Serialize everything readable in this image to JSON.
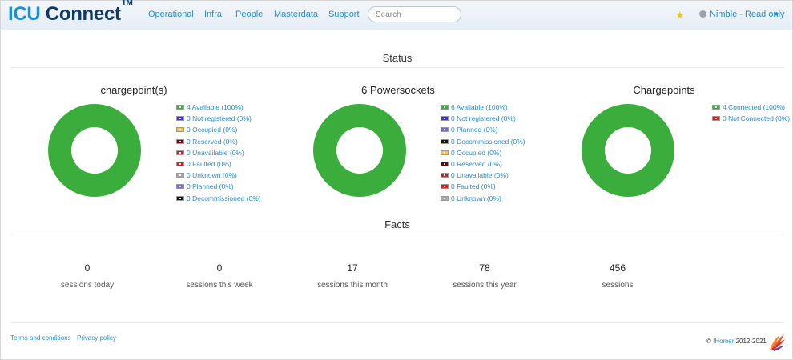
{
  "navbar": {
    "brand_part1": "ICU",
    "brand_part2": " Connect",
    "brand_tm": "TM",
    "links": [
      "Operational",
      "Infra",
      "People",
      "Masterdata",
      "Support"
    ],
    "search_placeholder": "Search",
    "user_menu": "Nimble - Read only"
  },
  "status": {
    "title": "Status",
    "charts": [
      {
        "title": "chargepoint(s)",
        "legend": [
          {
            "label": "4 Available (100%)",
            "color": "#3aad3d"
          },
          {
            "label": "0 Not registered (0%)",
            "color": "#3d30d9"
          },
          {
            "label": "0 Occupied (0%)",
            "color": "#f4c542"
          },
          {
            "label": "0 Reserved (0%)",
            "color": "#6e0010"
          },
          {
            "label": "0 Unavailable (0%)",
            "color": "#a83232"
          },
          {
            "label": "0 Faulted (0%)",
            "color": "#e01b1b"
          },
          {
            "label": "0 Unknown (0%)",
            "color": "#a6a6a6"
          },
          {
            "label": "0 Planned (0%)",
            "color": "#7b66d6"
          },
          {
            "label": "0 Decommissioned (0%)",
            "color": "#111111"
          }
        ]
      },
      {
        "title": "6 Powersockets",
        "legend": [
          {
            "label": "6 Available (100%)",
            "color": "#3aad3d"
          },
          {
            "label": "0 Not registered (0%)",
            "color": "#3d30d9"
          },
          {
            "label": "0 Planned (0%)",
            "color": "#7b66d6"
          },
          {
            "label": "0 Decommissioned (0%)",
            "color": "#111111"
          },
          {
            "label": "0 Occupied (0%)",
            "color": "#f4c542"
          },
          {
            "label": "0 Reserved (0%)",
            "color": "#6e0010"
          },
          {
            "label": "0 Unavailable (0%)",
            "color": "#a83232"
          },
          {
            "label": "0 Faulted (0%)",
            "color": "#e01b1b"
          },
          {
            "label": "0 Unknown (0%)",
            "color": "#a6a6a6"
          }
        ]
      },
      {
        "title": "Chargepoints",
        "legend": [
          {
            "label": "4 Connected (100%)",
            "color": "#3aad3d"
          },
          {
            "label": "0 Not Connected (0%)",
            "color": "#e01b1b"
          }
        ]
      }
    ]
  },
  "facts": {
    "title": "Facts",
    "items": [
      {
        "value": "0",
        "label": "sessions today"
      },
      {
        "value": "0",
        "label": "sessions this week"
      },
      {
        "value": "17",
        "label": "sessions this month"
      },
      {
        "value": "78",
        "label": "sessions this year"
      },
      {
        "value": "456",
        "label": "sessions"
      }
    ]
  },
  "footer": {
    "terms": "Terms and conditions",
    "privacy": "Privacy policy",
    "copyright_prefix": "© ",
    "company": "IHomer",
    "years": " 2012-2021"
  }
}
